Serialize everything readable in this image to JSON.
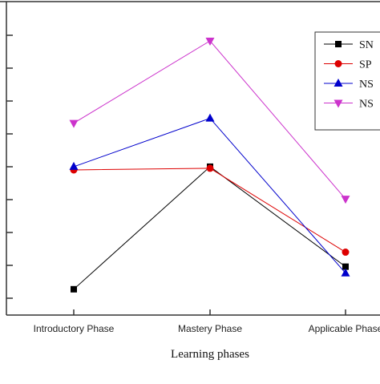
{
  "chart_data": {
    "type": "line",
    "categories": [
      "Introductory Phase",
      "Mastery Phase",
      "Applicable Phase"
    ],
    "xlabel": "Learning phases",
    "ylim": [
      0,
      8.5
    ],
    "series": [
      {
        "name": "SN",
        "color": "#000000",
        "marker": "square",
        "values": [
          0.8,
          4.6,
          1.5
        ]
      },
      {
        "name": "SP",
        "color": "#dd0000",
        "marker": "circle",
        "values": [
          4.5,
          4.55,
          1.95
        ]
      },
      {
        "name": "NS",
        "color": "#0000cc",
        "marker": "triangle-up",
        "values": [
          4.6,
          6.1,
          1.3
        ]
      },
      {
        "name": "NS",
        "color": "#cc33cc",
        "marker": "triangle-down",
        "values": [
          5.95,
          8.5,
          3.6
        ]
      }
    ],
    "legend_position": "top-right",
    "grid": false
  }
}
